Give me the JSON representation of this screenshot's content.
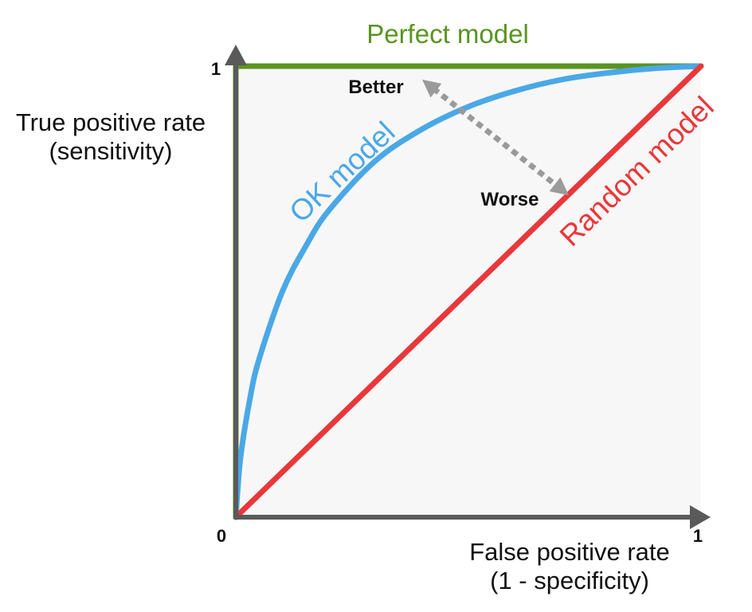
{
  "chart_data": {
    "type": "line",
    "xlabel": [
      "False positive rate",
      "(1 - specificity)"
    ],
    "ylabel": [
      "True positive rate",
      "(sensitivity)"
    ],
    "xlim": [
      0,
      1
    ],
    "ylim": [
      0,
      1
    ],
    "x_ticks": [
      "0",
      "1"
    ],
    "y_ticks": [
      "1"
    ],
    "grid": false,
    "background_color": "#f7f7f7",
    "series": [
      {
        "name": "Perfect model",
        "color": "#5a9420",
        "points": [
          [
            0,
            0
          ],
          [
            0,
            1
          ],
          [
            1,
            1
          ]
        ]
      },
      {
        "name": "OK model",
        "color": "#4aa8e6",
        "points": [
          [
            0,
            0
          ],
          [
            0.01,
            0.13
          ],
          [
            0.03,
            0.26
          ],
          [
            0.05,
            0.35
          ],
          [
            0.1,
            0.5
          ],
          [
            0.15,
            0.6
          ],
          [
            0.2,
            0.68
          ],
          [
            0.3,
            0.79
          ],
          [
            0.4,
            0.86
          ],
          [
            0.5,
            0.91
          ],
          [
            0.6,
            0.945
          ],
          [
            0.7,
            0.97
          ],
          [
            0.8,
            0.985
          ],
          [
            0.9,
            0.995
          ],
          [
            1,
            1
          ]
        ]
      },
      {
        "name": "Random model",
        "color": "#e8383a",
        "points": [
          [
            0,
            0
          ],
          [
            1,
            1
          ]
        ]
      }
    ],
    "annotations": {
      "better": "Better",
      "worse": "Worse"
    }
  }
}
